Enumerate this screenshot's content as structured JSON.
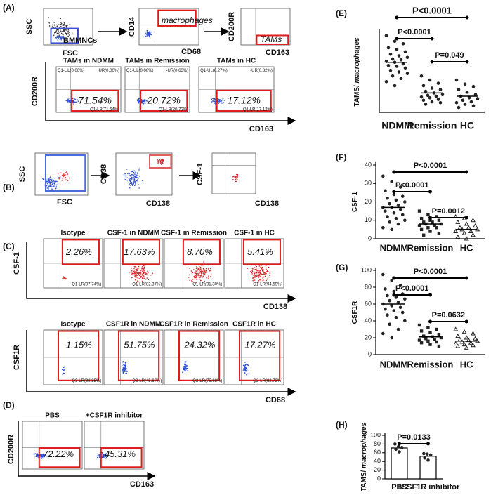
{
  "panel_a": {
    "label": "(A)",
    "gates": [
      {
        "y_axis": "SSC",
        "x_axis": "FSC",
        "gate": "BMMNCs"
      },
      {
        "y_axis": "CD14",
        "x_axis": "CD68",
        "gate": "macrophages"
      },
      {
        "y_axis": "CD200R",
        "x_axis": "CD163",
        "gate": "TAMs"
      }
    ],
    "y_axis": "CD200R",
    "x_axis": "CD163",
    "plots": [
      {
        "title": "TAMs in  NDMM",
        "ul": "Q1-UL(0.00%)",
        "ur": "-UR(0.00%)",
        "lr": "Q1-LR(71.54%)",
        "pct": "71.54%"
      },
      {
        "title": "TAMs in Remission",
        "ul": "Q1-UL(0.00%)",
        "ur": "-UR(0.63%)",
        "lr": "Q1-LR(20.72%)",
        "pct": "20.72%"
      },
      {
        "title": "TAMs in HC",
        "ul": "Q1-UL(0.27%)",
        "ur": "-UR(0.82%)",
        "lr": "Q1-LR(17.12%)",
        "pct": "17.12%"
      }
    ]
  },
  "panel_b": {
    "label": "(B)",
    "gates": [
      {
        "y_axis": "SSC",
        "x_axis": "FSC"
      },
      {
        "y_axis": "CD38",
        "x_axis": "CD138"
      },
      {
        "y_axis": "CSF-1",
        "x_axis": "CD138"
      }
    ]
  },
  "panel_c": {
    "label": "(C)",
    "rows": [
      {
        "y_axis": "CSF-1",
        "x_axis": "CD138",
        "plots": [
          {
            "title": "Isotype",
            "lr": "Q1-LR(97.74%)",
            "pct": "2.26%"
          },
          {
            "title": "CSF-1 in  NDMM",
            "lr": "Q1-LR(82.37%)",
            "pct": "17.63%"
          },
          {
            "title": "CSF-1 in Remission",
            "lr": "Q1-LR(91.30%)",
            "pct": "8.70%"
          },
          {
            "title": "CSF-1 in HC",
            "lr": "Q1-LR(94.59%)",
            "pct": "5.41%"
          }
        ]
      },
      {
        "y_axis": "CSF1R",
        "x_axis": "CD68",
        "plots": [
          {
            "title": "Isotype",
            "lr": "Q3-LR(98.85%)",
            "pct": "1.15%"
          },
          {
            "title": "CSF1R in  NDMM",
            "lr": "Q2-LR(45.67%)",
            "pct": "51.75%"
          },
          {
            "title": "CSF1R in Remission",
            "lr": "Q2-LR(75.68%)",
            "pct": "24.32%"
          },
          {
            "title": "CSF1R in HC",
            "lr": "Q2-LR(82.73%)",
            "pct": "17.27%"
          }
        ]
      }
    ]
  },
  "panel_d": {
    "label": "(D)",
    "y_axis": "CD200R",
    "x_axis": "CD163",
    "plots": [
      {
        "title": "PBS",
        "pct": "72.22%"
      },
      {
        "title": "+CSF1R inhibitor",
        "pct": "45.31%"
      }
    ]
  },
  "chart_data": [
    {
      "type": "dot",
      "label": "(E)",
      "ylabel": "TAMS/",
      "ylabel_em": "macrophages",
      "categories": [
        "NDMM",
        "Remission",
        "HC"
      ],
      "points": [
        [
          95,
          88,
          85,
          80,
          78,
          75,
          72,
          70,
          68,
          66,
          65,
          63,
          62,
          60,
          58,
          57,
          55,
          52,
          50,
          48,
          45,
          42,
          38,
          33
        ],
        [
          45,
          40,
          36,
          33,
          30,
          28,
          26,
          24,
          22,
          21,
          20,
          19,
          18,
          16,
          15,
          13,
          12,
          10
        ],
        [
          40,
          35,
          32,
          28,
          25,
          22,
          20,
          18,
          17,
          15,
          13,
          12,
          10,
          8,
          6
        ]
      ],
      "means": [
        62,
        24,
        20
      ],
      "ylim": [
        0,
        100
      ],
      "comparisons": [
        "P<0.0001",
        "P<0.0001",
        "P=0.049"
      ]
    },
    {
      "type": "dot",
      "label": "(F)",
      "ylabel": "CSF-1",
      "categories": [
        "NDMM",
        "Remission",
        "HC"
      ],
      "points": [
        [
          34,
          31,
          28,
          26,
          24,
          23,
          22,
          21,
          20,
          19,
          18,
          17,
          17,
          16,
          15,
          14,
          13,
          12,
          11,
          10,
          9,
          8,
          6,
          5
        ],
        [
          15,
          13,
          12,
          11,
          10,
          10,
          9,
          9,
          8,
          8,
          7,
          7,
          6,
          6,
          5,
          4,
          3,
          2
        ],
        [
          12,
          11,
          10,
          9,
          8,
          7,
          6,
          6,
          5,
          5,
          4,
          4,
          3,
          2,
          1,
          0
        ]
      ],
      "means": [
        17,
        8,
        5
      ],
      "ylim": [
        0,
        40
      ],
      "yticks": [
        0,
        10,
        20,
        30,
        40
      ],
      "comparisons": [
        "P<0.0001",
        "P<0.0001",
        "P=0.0012"
      ]
    },
    {
      "type": "dot",
      "label": "(G)",
      "ylabel": "CSF1R",
      "categories": [
        "NDMM",
        "Remission",
        "HC"
      ],
      "points": [
        [
          95,
          88,
          82,
          78,
          75,
          72,
          70,
          68,
          66,
          64,
          62,
          60,
          58,
          56,
          54,
          52,
          50,
          47,
          44,
          40,
          36,
          30,
          25,
          20
        ],
        [
          35,
          32,
          30,
          28,
          26,
          24,
          22,
          21,
          20,
          19,
          18,
          17,
          16,
          15,
          14,
          12,
          10
        ],
        [
          30,
          27,
          25,
          22,
          20,
          19,
          18,
          17,
          16,
          15,
          14,
          13,
          12,
          11,
          10,
          8
        ]
      ],
      "means": [
        60,
        21,
        16
      ],
      "ylim": [
        0,
        100
      ],
      "yticks": [
        0,
        20,
        40,
        60,
        80,
        100
      ],
      "comparisons": [
        "P<0.0001",
        "P<0.0001",
        "P=0.0632"
      ]
    },
    {
      "type": "bar",
      "label": "(H)",
      "ylabel": "TAMS/",
      "ylabel_em": "macrophages",
      "categories": [
        "PBS",
        "+CSF1R inhibitor"
      ],
      "values": [
        71,
        52
      ],
      "points": [
        [
          80,
          74,
          72,
          68,
          62
        ],
        [
          58,
          57,
          55,
          48,
          43
        ]
      ],
      "ylim": [
        0,
        100
      ],
      "yticks": [
        0,
        20,
        40,
        60,
        80,
        100
      ],
      "comparisons": [
        "P=0.0133"
      ]
    }
  ]
}
